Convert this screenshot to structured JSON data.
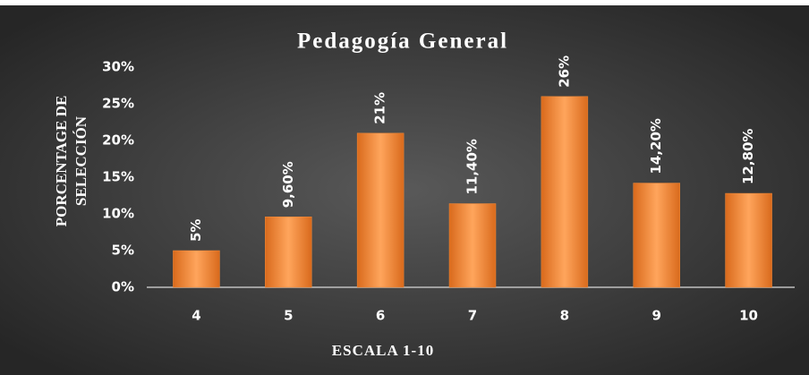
{
  "chart_data": {
    "type": "bar",
    "title": "Pedagogía General",
    "y_label": [
      "PORCENTAGE DE",
      "SELECCIÓN"
    ],
    "x_label": "ESCALA 1-10",
    "categories": [
      "4",
      "5",
      "6",
      "7",
      "8",
      "9",
      "10"
    ],
    "values": [
      5,
      9.6,
      21,
      11.4,
      26,
      14.2,
      12.8
    ],
    "value_labels": [
      "5%",
      "9,60%",
      "21%",
      "11,40%",
      "26%",
      "14,20%",
      "12,80%"
    ],
    "color": "#f08a3a",
    "ylim": [
      0,
      30
    ],
    "yticks": [
      {
        "value": 0,
        "label": "0%"
      },
      {
        "value": 5,
        "label": "5%"
      },
      {
        "value": 10,
        "label": "10%"
      },
      {
        "value": 15,
        "label": "15%"
      },
      {
        "value": 20,
        "label": "20%"
      },
      {
        "value": 25,
        "label": "25%"
      },
      {
        "value": 30,
        "label": "30%"
      }
    ],
    "grid": false
  }
}
